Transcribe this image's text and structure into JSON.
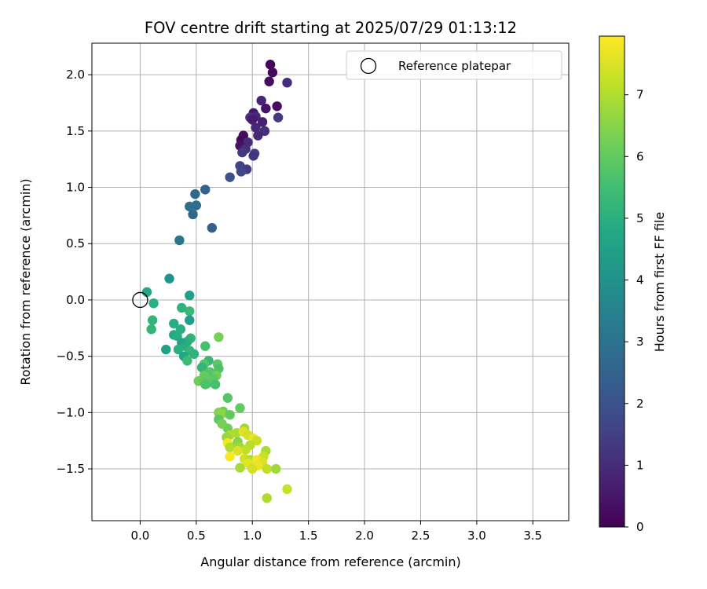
{
  "chart_data": {
    "type": "scatter",
    "title": "FOV centre drift starting at 2025/07/29 01:13:12",
    "xlabel": "Angular distance from reference (arcmin)",
    "ylabel": "Rotation from reference (arcmin)",
    "xlim": [
      -0.43,
      3.82
    ],
    "ylim": [
      -1.96,
      2.28
    ],
    "x_ticks": [
      0.0,
      0.5,
      1.0,
      1.5,
      2.0,
      2.5,
      3.0,
      3.5
    ],
    "x_tick_labels": [
      "0.0",
      "0.5",
      "1.0",
      "1.5",
      "2.0",
      "2.5",
      "3.0",
      "3.5"
    ],
    "y_ticks": [
      -1.5,
      -1.0,
      -0.5,
      0.0,
      0.5,
      1.0,
      1.5,
      2.0
    ],
    "y_tick_labels": [
      "−1.5",
      "−1.0",
      "−0.5",
      "0.0",
      "0.5",
      "1.0",
      "1.5",
      "2.0"
    ],
    "grid": true,
    "legend": {
      "placement": "top-right",
      "entries": [
        "Reference platepar"
      ]
    },
    "reference_point": {
      "x": 0.0,
      "y": 0.0,
      "marker": "open-circle",
      "color": "#000000"
    },
    "colorbar": {
      "label": "Hours from first FF file",
      "min": 0,
      "max": 7.95,
      "ticks": [
        0,
        1,
        2,
        3,
        4,
        5,
        6,
        7
      ],
      "tick_labels": [
        "0",
        "1",
        "2",
        "3",
        "4",
        "5",
        "6",
        "7"
      ],
      "colormap": "viridis"
    },
    "series": [
      {
        "color_by": "hours",
        "points": [
          [
            1.16,
            2.09,
            0.1
          ],
          [
            1.18,
            2.02,
            0.2
          ],
          [
            1.15,
            1.94,
            0.3
          ],
          [
            1.31,
            1.93,
            1.0
          ],
          [
            1.08,
            1.77,
            0.8
          ],
          [
            1.22,
            1.72,
            0.3
          ],
          [
            1.12,
            1.7,
            0.4
          ],
          [
            1.01,
            1.66,
            0.5
          ],
          [
            0.98,
            1.62,
            1.2
          ],
          [
            1.03,
            1.63,
            0.9
          ],
          [
            1.23,
            1.62,
            1.3
          ],
          [
            1.09,
            1.58,
            0.7
          ],
          [
            1.0,
            1.6,
            0.6
          ],
          [
            1.03,
            1.53,
            0.9
          ],
          [
            1.11,
            1.5,
            1.1
          ],
          [
            0.92,
            1.46,
            0.3
          ],
          [
            1.05,
            1.46,
            0.9
          ],
          [
            0.9,
            1.42,
            0.2
          ],
          [
            0.96,
            1.4,
            1.0
          ],
          [
            0.89,
            1.37,
            0.4
          ],
          [
            0.94,
            1.34,
            1.1
          ],
          [
            0.91,
            1.31,
            1.3
          ],
          [
            1.02,
            1.3,
            1.5
          ],
          [
            1.01,
            1.28,
            1.2
          ],
          [
            0.89,
            1.19,
            1.6
          ],
          [
            0.95,
            1.16,
            1.4
          ],
          [
            0.9,
            1.14,
            1.7
          ],
          [
            0.8,
            1.09,
            2.0
          ],
          [
            0.58,
            0.98,
            2.5
          ],
          [
            0.49,
            0.94,
            2.7
          ],
          [
            0.44,
            0.83,
            2.9
          ],
          [
            0.5,
            0.84,
            2.8
          ],
          [
            0.47,
            0.76,
            2.6
          ],
          [
            0.64,
            0.64,
            2.4
          ],
          [
            0.35,
            0.53,
            3.1
          ],
          [
            0.26,
            0.19,
            4.1
          ],
          [
            0.06,
            0.07,
            4.7
          ],
          [
            0.12,
            -0.03,
            5.0
          ],
          [
            0.44,
            0.04,
            4.5
          ],
          [
            0.37,
            -0.07,
            5.1
          ],
          [
            0.44,
            -0.1,
            5.3
          ],
          [
            0.11,
            -0.18,
            5.2
          ],
          [
            0.44,
            -0.18,
            4.4
          ],
          [
            0.3,
            -0.21,
            4.9
          ],
          [
            0.1,
            -0.26,
            5.2
          ],
          [
            0.36,
            -0.26,
            5.0
          ],
          [
            0.3,
            -0.31,
            4.8
          ],
          [
            0.33,
            -0.32,
            4.9
          ],
          [
            0.7,
            -0.33,
            6.3
          ],
          [
            0.45,
            -0.34,
            5.2
          ],
          [
            0.42,
            -0.37,
            5.0
          ],
          [
            0.37,
            -0.38,
            4.6
          ],
          [
            0.4,
            -0.41,
            4.9
          ],
          [
            0.58,
            -0.41,
            5.6
          ],
          [
            0.34,
            -0.44,
            5.0
          ],
          [
            0.23,
            -0.44,
            4.5
          ],
          [
            0.44,
            -0.45,
            5.2
          ],
          [
            0.48,
            -0.48,
            5.1
          ],
          [
            0.39,
            -0.5,
            4.7
          ],
          [
            0.42,
            -0.54,
            5.4
          ],
          [
            0.61,
            -0.54,
            5.3
          ],
          [
            0.57,
            -0.57,
            5.8
          ],
          [
            0.69,
            -0.57,
            5.9
          ],
          [
            0.55,
            -0.6,
            5.2
          ],
          [
            0.7,
            -0.61,
            5.7
          ],
          [
            0.62,
            -0.64,
            5.8
          ],
          [
            0.57,
            -0.67,
            6.0
          ],
          [
            0.68,
            -0.67,
            6.2
          ],
          [
            0.65,
            -0.7,
            5.9
          ],
          [
            0.52,
            -0.72,
            6.2
          ],
          [
            0.57,
            -0.73,
            6.0
          ],
          [
            0.6,
            -0.74,
            5.9
          ],
          [
            0.67,
            -0.75,
            5.6
          ],
          [
            0.58,
            -0.75,
            5.7
          ],
          [
            0.78,
            -0.87,
            5.8
          ],
          [
            0.89,
            -0.96,
            6.0
          ],
          [
            0.74,
            -0.99,
            6.2
          ],
          [
            0.7,
            -1.0,
            6.4
          ],
          [
            0.73,
            -1.01,
            6.6
          ],
          [
            0.8,
            -1.02,
            6.0
          ],
          [
            0.7,
            -1.06,
            5.9
          ],
          [
            0.93,
            -1.14,
            6.8
          ],
          [
            0.78,
            -1.14,
            6.2
          ],
          [
            0.73,
            -1.1,
            6.3
          ],
          [
            0.86,
            -1.18,
            6.9
          ],
          [
            0.92,
            -1.17,
            7.6
          ],
          [
            0.8,
            -1.2,
            7.0
          ],
          [
            0.96,
            -1.2,
            7.4
          ],
          [
            0.77,
            -1.22,
            6.7
          ],
          [
            1.01,
            -1.23,
            7.7
          ],
          [
            1.04,
            -1.25,
            7.3
          ],
          [
            0.87,
            -1.26,
            6.5
          ],
          [
            0.78,
            -1.27,
            7.8
          ],
          [
            0.98,
            -1.29,
            7.1
          ],
          [
            0.85,
            -1.3,
            6.6
          ],
          [
            0.89,
            -1.31,
            6.8
          ],
          [
            0.8,
            -1.31,
            7.0
          ],
          [
            0.94,
            -1.33,
            7.2
          ],
          [
            0.87,
            -1.34,
            7.5
          ],
          [
            1.12,
            -1.34,
            6.9
          ],
          [
            0.8,
            -1.39,
            7.9
          ],
          [
            1.1,
            -1.39,
            7.3
          ],
          [
            0.93,
            -1.41,
            7.4
          ],
          [
            0.98,
            -1.42,
            7.0
          ],
          [
            1.04,
            -1.42,
            7.8
          ],
          [
            1.09,
            -1.44,
            7.5
          ],
          [
            0.96,
            -1.45,
            7.6
          ],
          [
            1.05,
            -1.47,
            7.7
          ],
          [
            0.89,
            -1.49,
            6.9
          ],
          [
            1.0,
            -1.5,
            7.4
          ],
          [
            1.13,
            -1.5,
            7.2
          ],
          [
            1.21,
            -1.5,
            6.8
          ],
          [
            1.13,
            -1.76,
            7.0
          ],
          [
            1.31,
            -1.68,
            7.3
          ]
        ]
      }
    ]
  }
}
